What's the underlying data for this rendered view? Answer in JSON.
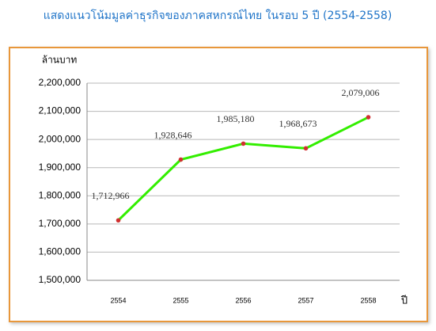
{
  "chart_data": {
    "type": "line",
    "title": "แสดงแนวโน้มมูลค่าธุรกิจของภาคสหกรณ์ไทย  ในรอบ 5 ปี (2554-2558)",
    "y_label": "ล้านบาท",
    "x_label": "ปี",
    "categories": [
      "2554",
      "2555",
      "2556",
      "2557",
      "2558"
    ],
    "values": [
      1712966,
      1928646,
      1985180,
      1968673,
      2079006
    ],
    "value_labels": [
      "1,712,966",
      "1,928,646",
      "1,985,180",
      "1,968,673",
      "2,079,006"
    ],
    "color": "#33ee00",
    "marker_color": "#d03030",
    "ylim": [
      1500000,
      2200000
    ],
    "yticks": [
      {
        "value": 1500000,
        "label": "1,500,000"
      },
      {
        "value": 1600000,
        "label": "1,600,000"
      },
      {
        "value": 1700000,
        "label": "1,700,000"
      },
      {
        "value": 1800000,
        "label": "1,800,000"
      },
      {
        "value": 1900000,
        "label": "1,900,000"
      },
      {
        "value": 2000000,
        "label": "2,000,000"
      },
      {
        "value": 2100000,
        "label": "2,100,000"
      },
      {
        "value": 2200000,
        "label": "2,200,000"
      }
    ],
    "grid": true
  }
}
